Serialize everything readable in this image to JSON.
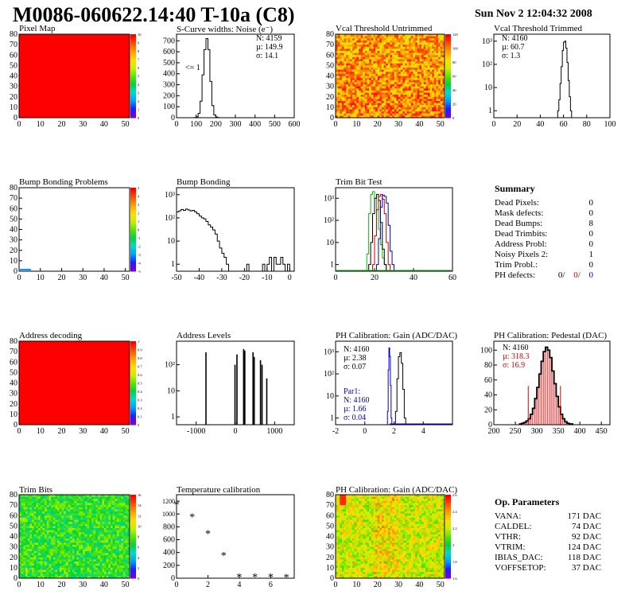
{
  "header": {
    "title": "M0086-060622.14:40 T-10a (C8)",
    "date": "Sun Nov  2 12:04:32 2008"
  },
  "panels": {
    "pixel_map": {
      "title": "Pixel Map"
    },
    "scurve": {
      "title": "S-Curve widths: Noise (e⁻)",
      "stats": {
        "n": "N: 4159",
        "mu": "µ: 149.9",
        "sigma": "σ: 14.1"
      },
      "underflow_label": "<= 1"
    },
    "vcal_untrimmed": {
      "title": "Vcal Threshold Untrimmed"
    },
    "vcal_trimmed": {
      "title": "Vcal Threshold Trimmed",
      "stats": {
        "n": "N: 4160",
        "mu": "µ: 60.7",
        "sigma": "σ:  1.3"
      }
    },
    "bump_problems": {
      "title": "Bump Bonding Problems"
    },
    "bump_bonding": {
      "title": "Bump Bonding"
    },
    "trim_bit_test": {
      "title": "Trim Bit Test"
    },
    "address_decoding": {
      "title": "Address decoding"
    },
    "address_levels": {
      "title": "Address Levels"
    },
    "ph_gain": {
      "title": "PH Calibration: Gain (ADC/DAC)",
      "stats": {
        "n": "N: 4160",
        "mu": "µ: 2.38",
        "sigma": "σ: 0.07"
      },
      "par1": {
        "label": "Par1:",
        "n": "N: 4160",
        "mu": "µ: 1.66",
        "sigma": "σ: 0.04"
      }
    },
    "ph_pedestal": {
      "title": "PH Calibration: Pedestal (DAC)",
      "stats": {
        "n": "N: 4160",
        "mu": "µ: 318.3",
        "sigma": "σ: 16.9"
      }
    },
    "trim_bits": {
      "title": "Trim Bits"
    },
    "temperature": {
      "title": "Temperature calibration"
    },
    "ph_gain_map": {
      "title": "PH Calibration: Gain (ADC/DAC)"
    }
  },
  "summary": {
    "title": "Summary",
    "rows": [
      {
        "label": "Dead Pixels:",
        "value": "0"
      },
      {
        "label": "Mask defects:",
        "value": "0"
      },
      {
        "label": "Dead Bumps:",
        "value": "8"
      },
      {
        "label": "Dead Trimbits:",
        "value": "0"
      },
      {
        "label": "Address Probl:",
        "value": "0"
      },
      {
        "label": "Noisy Pixels 2:",
        "value": "1"
      },
      {
        "label": "Trim Probl.:",
        "value": "0"
      }
    ],
    "ph_defects": {
      "label": "PH defects:",
      "v1": "0/",
      "v2": "0/",
      "v3": "0"
    },
    "colors": {
      "red": "#d00000",
      "blue": "#0000d0"
    }
  },
  "op_params": {
    "title": "Op. Parameters",
    "rows": [
      {
        "label": "VANA:",
        "value": "171 DAC"
      },
      {
        "label": "CALDEL:",
        "value": "74 DAC"
      },
      {
        "label": "VTHR:",
        "value": "92 DAC"
      },
      {
        "label": "VTRIM:",
        "value": "124 DAC"
      },
      {
        "label": "IBIAS_DAC:",
        "value": "118 DAC"
      },
      {
        "label": "VOFFSETOP:",
        "value": "37 DAC"
      }
    ]
  },
  "chart_data": [
    {
      "id": "pixel_map",
      "type": "heatmap",
      "x_ticks": [
        "0",
        "10",
        "20",
        "30",
        "40",
        "50"
      ],
      "y_ticks": [
        "0",
        "10",
        "20",
        "30",
        "40",
        "50",
        "60",
        "70",
        "80"
      ],
      "xlim": [
        0,
        52
      ],
      "ylim": [
        0,
        80
      ],
      "uniform_value": 10,
      "palette_labels": [
        "0",
        "1",
        "2",
        "3",
        "4",
        "5",
        "6",
        "7",
        "8",
        "9",
        "10"
      ]
    },
    {
      "id": "scurve",
      "type": "bar",
      "x_ticks": [
        "0",
        "100",
        "200",
        "300",
        "400",
        "500",
        "600"
      ],
      "y_ticks": [
        "0",
        "100",
        "200",
        "300",
        "400",
        "500",
        "600",
        "700"
      ],
      "xlim": [
        0,
        600
      ],
      "ylim": [
        0,
        760
      ],
      "x": [
        90,
        100,
        110,
        120,
        130,
        140,
        150,
        160,
        170,
        180,
        190,
        200,
        210
      ],
      "values": [
        2,
        8,
        40,
        150,
        390,
        620,
        720,
        620,
        330,
        110,
        25,
        6,
        1
      ]
    },
    {
      "id": "vcal_untrimmed",
      "type": "heatmap",
      "x_ticks": [
        "0",
        "10",
        "20",
        "30",
        "40",
        "50"
      ],
      "y_ticks": [
        "0",
        "10",
        "20",
        "30",
        "40",
        "50",
        "60",
        "70",
        "80"
      ],
      "xlim": [
        0,
        52
      ],
      "ylim": [
        0,
        80
      ],
      "palette_labels": [
        "0",
        "20",
        "40",
        "60",
        "80",
        "100",
        "120"
      ]
    },
    {
      "id": "vcal_trimmed",
      "type": "bar",
      "x_ticks": [
        "0",
        "20",
        "40",
        "60",
        "80",
        "100"
      ],
      "y_ticks": [
        "1",
        "10",
        "10²",
        "10³"
      ],
      "log_y": true,
      "xlim": [
        0,
        100
      ],
      "ylim": [
        0.5,
        2000
      ],
      "x": [
        55,
        56,
        57,
        58,
        59,
        60,
        61,
        62,
        63,
        64,
        65,
        66
      ],
      "values": [
        1,
        3,
        15,
        80,
        400,
        900,
        1000,
        500,
        120,
        20,
        4,
        1
      ]
    },
    {
      "id": "bump_problems",
      "type": "heatmap",
      "x_ticks": [
        "0",
        "10",
        "20",
        "30",
        "40",
        "50"
      ],
      "y_ticks": [
        "0",
        "10",
        "20",
        "30",
        "40",
        "50",
        "60",
        "70",
        "80"
      ],
      "xlim": [
        0,
        52
      ],
      "ylim": [
        0,
        80
      ],
      "palette_labels": [
        "-5",
        "-4",
        "-3",
        "-2",
        "-1",
        "0",
        "1",
        "2",
        "3",
        "4",
        "5"
      ]
    },
    {
      "id": "bump_bonding",
      "type": "bar",
      "x_ticks": [
        "-50",
        "-40",
        "-30",
        "-20",
        "-10",
        "0"
      ],
      "y_ticks": [
        "1",
        "10",
        "10²",
        "10³"
      ],
      "log_y": true,
      "xlim": [
        -50,
        2
      ],
      "ylim": [
        0.5,
        2000
      ],
      "x": [
        -50,
        -49,
        -48,
        -47,
        -46,
        -45,
        -44,
        -43,
        -42,
        -41,
        -40,
        -39,
        -38,
        -37,
        -36,
        -35,
        -34,
        -33,
        -32,
        -31,
        -30,
        -29,
        -28,
        -27,
        -26,
        -25,
        -24,
        -23,
        -22,
        -21,
        -20,
        -19,
        -18,
        -17,
        -16,
        -15,
        -14,
        -13,
        -12,
        -11,
        -10,
        -9,
        -8,
        -7,
        -6,
        -5,
        -4,
        -3,
        -2,
        -1
      ],
      "values": [
        180,
        200,
        230,
        210,
        240,
        220,
        200,
        210,
        180,
        150,
        120,
        100,
        90,
        70,
        50,
        40,
        30,
        20,
        10,
        5,
        3,
        2,
        1,
        0,
        0,
        0,
        0,
        0,
        0,
        0,
        0,
        1,
        0,
        0,
        0,
        0,
        0,
        0,
        1,
        0,
        1,
        2,
        0,
        2,
        1,
        1,
        2,
        1,
        0,
        1
      ]
    },
    {
      "id": "trim_bit_test",
      "type": "line",
      "x_ticks": [
        "0",
        "20",
        "40",
        "60"
      ],
      "y_ticks": [
        "1",
        "10",
        "10²",
        "10³"
      ],
      "log_y": true,
      "xlim": [
        0,
        60
      ],
      "ylim": [
        0.5,
        3000
      ],
      "series": [
        {
          "color": "#00c000",
          "x": [
            16,
            17,
            18,
            19,
            20,
            21,
            22,
            23,
            24,
            25
          ],
          "values": [
            3,
            200,
            1500,
            2000,
            1000,
            300,
            40,
            8,
            2,
            1
          ]
        },
        {
          "color": "#000000",
          "x": [
            17,
            18,
            19,
            20,
            21,
            22,
            23,
            24,
            25
          ],
          "values": [
            1,
            10,
            200,
            1000,
            1500,
            800,
            80,
            5,
            1
          ]
        },
        {
          "color": "#d00000",
          "x": [
            19,
            20,
            21,
            22,
            23,
            24,
            25,
            26,
            27
          ],
          "values": [
            1,
            20,
            300,
            1200,
            1500,
            900,
            200,
            10,
            1
          ]
        },
        {
          "color": "#0000d0",
          "x": [
            21,
            22,
            23,
            24,
            25,
            26,
            27,
            28,
            29
          ],
          "values": [
            1,
            15,
            400,
            1400,
            1200,
            600,
            60,
            4,
            1
          ]
        }
      ]
    },
    {
      "id": "address_decoding",
      "type": "heatmap",
      "x_ticks": [
        "0",
        "10",
        "20",
        "30",
        "40",
        "50"
      ],
      "y_ticks": [
        "0",
        "10",
        "20",
        "30",
        "40",
        "50",
        "60",
        "70",
        "80"
      ],
      "xlim": [
        0,
        52
      ],
      "ylim": [
        0,
        80
      ],
      "uniform_value": 1,
      "palette_labels": [
        "0",
        "0.1",
        "0.2",
        "0.3",
        "0.4",
        "0.5",
        "0.6",
        "0.7",
        "0.8",
        "0.9",
        "1"
      ]
    },
    {
      "id": "address_levels",
      "type": "bar",
      "x_ticks": [
        "-1000",
        "0",
        "1000"
      ],
      "y_ticks": [
        "1",
        "10",
        "10²"
      ],
      "log_y": true,
      "xlim": [
        -1500,
        1500
      ],
      "ylim": [
        0.5,
        800
      ],
      "x": [
        -750,
        -10,
        40,
        210,
        240,
        450,
        480,
        640,
        680,
        800
      ],
      "values": [
        300,
        100,
        250,
        400,
        350,
        300,
        200,
        150,
        100,
        30
      ]
    },
    {
      "id": "ph_gain",
      "type": "line",
      "x_ticks": [
        "-2",
        "0",
        "2",
        "4"
      ],
      "y_ticks": [
        "1",
        "10",
        "10²",
        "10³"
      ],
      "log_y": true,
      "xlim": [
        -2,
        6
      ],
      "ylim": [
        0.5,
        3000
      ],
      "series": [
        {
          "name": "Par1",
          "color": "#0000d0",
          "x": [
            1.55,
            1.6,
            1.65,
            1.7,
            1.75,
            1.8
          ],
          "values": [
            2,
            150,
            1500,
            600,
            30,
            1
          ]
        },
        {
          "color": "#000000",
          "x": [
            2.1,
            2.2,
            2.3,
            2.4,
            2.5,
            2.6,
            2.7
          ],
          "values": [
            2,
            60,
            600,
            900,
            300,
            20,
            1
          ]
        }
      ]
    },
    {
      "id": "ph_pedestal",
      "type": "bar",
      "x_ticks": [
        "200",
        "250",
        "300",
        "350",
        "400",
        "450"
      ],
      "y_ticks": [
        "0",
        "20",
        "40",
        "60",
        "80",
        "100"
      ],
      "xlim": [
        200,
        470
      ],
      "ylim": [
        0,
        112
      ],
      "x": [
        260,
        265,
        270,
        275,
        280,
        285,
        290,
        295,
        300,
        305,
        310,
        315,
        320,
        325,
        330,
        335,
        340,
        345,
        350,
        355,
        360,
        365,
        370,
        375,
        380
      ],
      "values": [
        1,
        2,
        3,
        5,
        8,
        14,
        22,
        35,
        50,
        68,
        85,
        98,
        104,
        100,
        90,
        72,
        55,
        38,
        24,
        14,
        8,
        4,
        2,
        1,
        1
      ],
      "markers": [
        280,
        355
      ]
    },
    {
      "id": "trim_bits",
      "type": "heatmap",
      "x_ticks": [
        "0",
        "10",
        "20",
        "30",
        "40",
        "50"
      ],
      "y_ticks": [
        "0",
        "10",
        "20",
        "30",
        "40",
        "50",
        "60",
        "70",
        "80"
      ],
      "xlim": [
        0,
        52
      ],
      "ylim": [
        0,
        80
      ],
      "palette_labels": [
        "0",
        "2",
        "4",
        "6",
        "8",
        "10",
        "12",
        "14",
        "16"
      ]
    },
    {
      "id": "temperature",
      "type": "scatter",
      "x_ticks": [
        "0",
        "2",
        "4",
        "6"
      ],
      "y_ticks": [
        "0",
        "200",
        "400",
        "600",
        "800",
        "1000",
        "1200"
      ],
      "xlim": [
        0,
        7.5
      ],
      "ylim": [
        0,
        1300
      ],
      "x": [
        0,
        1,
        2,
        3,
        4,
        5,
        6,
        7
      ],
      "values": [
        1150,
        960,
        700,
        360,
        25,
        25,
        25,
        20
      ]
    },
    {
      "id": "ph_gain_map",
      "type": "heatmap",
      "x_ticks": [
        "0",
        "10",
        "20",
        "30",
        "40",
        "50"
      ],
      "y_ticks": [
        "0",
        "10",
        "20",
        "30",
        "40",
        "50",
        "60",
        "70",
        "80"
      ],
      "xlim": [
        0,
        52
      ],
      "ylim": [
        0,
        80
      ],
      "palette_labels": [
        "1.6",
        "1.8",
        "2",
        "2.2",
        "2.4",
        "2.6"
      ]
    }
  ]
}
